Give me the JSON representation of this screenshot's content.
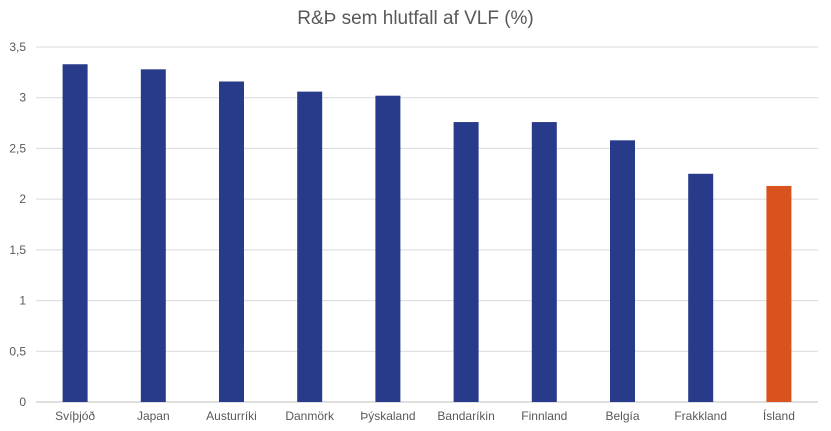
{
  "chart_data": {
    "type": "bar",
    "title": "R&Þ sem hlutfall af VLF (%)",
    "categories": [
      "Svíþjóð",
      "Japan",
      "Austurríki",
      "Danmörk",
      "Þýskaland",
      "Bandaríkin",
      "Finnland",
      "Belgía",
      "Frakkland",
      "Ísland"
    ],
    "values": [
      3.33,
      3.28,
      3.16,
      3.06,
      3.02,
      2.76,
      2.76,
      2.58,
      2.25,
      2.13
    ],
    "ylim": [
      0,
      3.5
    ],
    "yticks": [
      "0",
      "0,5",
      "1",
      "1,5",
      "2",
      "2,5",
      "3",
      "3,5"
    ],
    "xlabel": "",
    "ylabel": "",
    "grid": true,
    "colors": {
      "bar": "#283B8A",
      "highlight": "#D9531E",
      "grid": "#D9D9D9",
      "text": "#595959"
    },
    "highlight_category": "Ísland"
  }
}
